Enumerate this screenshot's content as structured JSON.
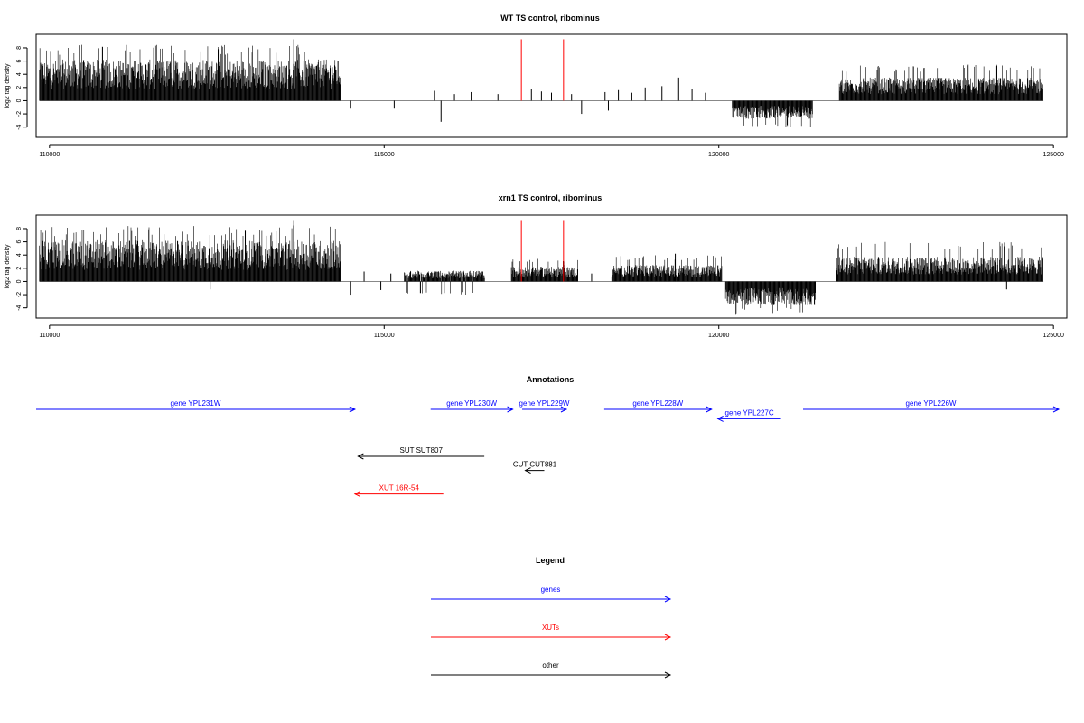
{
  "chart_data": [
    {
      "type": "bar",
      "title": "WT TS control, ribominus",
      "ylabel": "log2 tag density",
      "xlabel": "",
      "xlim": [
        109800,
        125200
      ],
      "ylim": [
        -5,
        9.5
      ],
      "x_ticks": [
        110000,
        115000,
        120000,
        125000
      ],
      "x_tick_labels": [
        "110000",
        "115000",
        "120000",
        "125000"
      ],
      "y_ticks": [
        -4,
        -2,
        0,
        2,
        4,
        6,
        8
      ],
      "y_tick_labels": [
        "-4",
        "-2",
        "0",
        "2",
        "4",
        "6",
        "8"
      ],
      "dense_regions": [
        {
          "start": 109850,
          "end": 114350,
          "min": 0,
          "max": 8.5,
          "typical": 5
        },
        {
          "start": 120200,
          "end": 121400,
          "min": -4,
          "max": 0,
          "typical": -2.2
        },
        {
          "start": 121800,
          "end": 124850,
          "min": 0,
          "max": 5.5,
          "typical": 2.8
        }
      ],
      "sparse_bars": [
        {
          "x": 113650,
          "y": 9.3
        },
        {
          "x": 114500,
          "y": -1.2
        },
        {
          "x": 115150,
          "y": -1.2
        },
        {
          "x": 115750,
          "y": 1.5
        },
        {
          "x": 115850,
          "y": -3.2
        },
        {
          "x": 116050,
          "y": 1.0
        },
        {
          "x": 116300,
          "y": 1.3
        },
        {
          "x": 116700,
          "y": 1.0
        },
        {
          "x": 117200,
          "y": 1.8
        },
        {
          "x": 117350,
          "y": 1.4
        },
        {
          "x": 117500,
          "y": 1.2
        },
        {
          "x": 117800,
          "y": 1.0
        },
        {
          "x": 117950,
          "y": -2.0
        },
        {
          "x": 118300,
          "y": 1.3
        },
        {
          "x": 118350,
          "y": -1.5
        },
        {
          "x": 118500,
          "y": 1.6
        },
        {
          "x": 118700,
          "y": 1.2
        },
        {
          "x": 118900,
          "y": 2.0
        },
        {
          "x": 119150,
          "y": 2.2
        },
        {
          "x": 119400,
          "y": 3.5
        },
        {
          "x": 119600,
          "y": 1.8
        },
        {
          "x": 119800,
          "y": 1.2
        }
      ],
      "red_marks": [
        117050,
        117680
      ],
      "red_mark_height": 9.3
    },
    {
      "type": "bar",
      "title": "xrn1 TS control, ribominus",
      "ylabel": "log2 tag density",
      "xlabel": "",
      "xlim": [
        109800,
        125200
      ],
      "ylim": [
        -5,
        9.5
      ],
      "x_ticks": [
        110000,
        115000,
        120000,
        125000
      ],
      "x_tick_labels": [
        "110000",
        "115000",
        "120000",
        "125000"
      ],
      "y_ticks": [
        -4,
        -2,
        0,
        2,
        4,
        6,
        8
      ],
      "y_tick_labels": [
        "-4",
        "-2",
        "0",
        "2",
        "4",
        "6",
        "8"
      ],
      "dense_regions": [
        {
          "start": 109850,
          "end": 114350,
          "min": 0,
          "max": 8.5,
          "typical": 5
        },
        {
          "start": 115300,
          "end": 116500,
          "min": -2,
          "max": 3,
          "typical": 1.3
        },
        {
          "start": 116900,
          "end": 117900,
          "min": 0,
          "max": 3.5,
          "typical": 1.8
        },
        {
          "start": 118400,
          "end": 120050,
          "min": 0,
          "max": 4,
          "typical": 2
        },
        {
          "start": 120100,
          "end": 121450,
          "min": -5,
          "max": 0,
          "typical": -2.8
        },
        {
          "start": 121750,
          "end": 124850,
          "min": 0,
          "max": 6,
          "typical": 3
        }
      ],
      "sparse_bars": [
        {
          "x": 113650,
          "y": 9.3
        },
        {
          "x": 112400,
          "y": -1.2
        },
        {
          "x": 114500,
          "y": -2.0
        },
        {
          "x": 114700,
          "y": 1.5
        },
        {
          "x": 114950,
          "y": -1.3
        },
        {
          "x": 115100,
          "y": 1.2
        },
        {
          "x": 117050,
          "y": 1.0
        },
        {
          "x": 117700,
          "y": 2.5
        },
        {
          "x": 118100,
          "y": 1.2
        },
        {
          "x": 119350,
          "y": 4.2
        },
        {
          "x": 124300,
          "y": -1.2
        }
      ],
      "red_marks": [
        117050,
        117680
      ],
      "red_mark_height": 9.3
    }
  ],
  "annotations": {
    "title": "Annotations",
    "x_range": [
      109700,
      125900
    ],
    "features": [
      {
        "label": "gene YPL231W",
        "start": 109700,
        "end": 114750,
        "strand": "+",
        "color": "#0000ff",
        "row": 0
      },
      {
        "label": "gene YPL230W",
        "start": 115950,
        "end": 117250,
        "strand": "+",
        "color": "#0000ff",
        "row": 0
      },
      {
        "label": "gene YPL229W",
        "start": 117400,
        "end": 118100,
        "strand": "+",
        "color": "#0000ff",
        "row": 0
      },
      {
        "label": "gene YPL228W",
        "start": 118700,
        "end": 120400,
        "strand": "+",
        "color": "#0000ff",
        "row": 0
      },
      {
        "label": "gene YPL227C",
        "start": 120500,
        "end": 121500,
        "strand": "-",
        "color": "#0000ff",
        "row": 0.4
      },
      {
        "label": "gene YPL226W",
        "start": 121850,
        "end": 125900,
        "strand": "+",
        "color": "#0000ff",
        "row": 0
      },
      {
        "label": "SUT SUT807",
        "start": 114800,
        "end": 116800,
        "strand": "-",
        "color": "#000000",
        "row": 2
      },
      {
        "label": "CUT CUT881",
        "start": 117450,
        "end": 117750,
        "strand": "-",
        "color": "#000000",
        "row": 2.6
      },
      {
        "label": "XUT 16R-54",
        "start": 114750,
        "end": 116150,
        "strand": "-",
        "color": "#ff0000",
        "row": 3.6
      }
    ]
  },
  "legend": {
    "title": "Legend",
    "items": [
      {
        "label": "genes",
        "color": "#0000ff"
      },
      {
        "label": "XUTs",
        "color": "#ff0000"
      },
      {
        "label": "other",
        "color": "#000000"
      }
    ]
  }
}
